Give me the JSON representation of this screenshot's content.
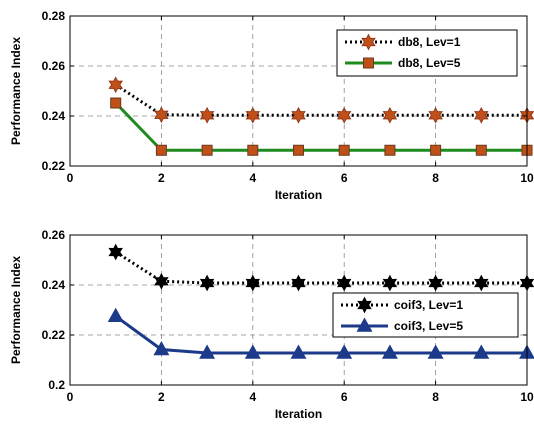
{
  "chart_data": [
    {
      "type": "line",
      "xlabel": "Iteration",
      "ylabel": "Performance Index",
      "xlim": [
        0,
        10
      ],
      "ylim": [
        0.22,
        0.28
      ],
      "xticks": [
        0,
        2,
        4,
        6,
        8,
        10
      ],
      "yticks": [
        0.22,
        0.24,
        0.26,
        0.28
      ],
      "ytick_labels": [
        "0.22",
        "0.24",
        "0.26",
        "0.28"
      ],
      "grid": true,
      "legend_position": "top-right",
      "series": [
        {
          "name": "db8, Lev=1",
          "x": [
            1,
            2,
            3,
            4,
            5,
            6,
            7,
            8,
            9,
            10
          ],
          "values": [
            0.2525,
            0.2405,
            0.2403,
            0.2403,
            0.2403,
            0.2403,
            0.2403,
            0.2403,
            0.2403,
            0.2403
          ],
          "line_color": "#000000",
          "line_style": "dotted",
          "marker": "hexagram",
          "marker_color": "#c0501a",
          "marker_edge": "#8b2f10"
        },
        {
          "name": "db8, Lev=5",
          "x": [
            1,
            2,
            3,
            4,
            5,
            6,
            7,
            8,
            9,
            10
          ],
          "values": [
            0.2452,
            0.2263,
            0.2263,
            0.2263,
            0.2263,
            0.2263,
            0.2263,
            0.2263,
            0.2263,
            0.2263
          ],
          "line_color": "#1f8a1f",
          "line_style": "solid",
          "marker": "square",
          "marker_color": "#c0501a",
          "marker_edge": "#6b3a1a"
        }
      ]
    },
    {
      "type": "line",
      "xlabel": "Iteration",
      "ylabel": "Performance Index",
      "xlim": [
        0,
        10
      ],
      "ylim": [
        0.2,
        0.26
      ],
      "xticks": [
        0,
        2,
        4,
        6,
        8,
        10
      ],
      "yticks": [
        0.2,
        0.22,
        0.24,
        0.26
      ],
      "ytick_labels": [
        "0.2",
        "0.22",
        "0.24",
        "0.26"
      ],
      "grid": true,
      "legend_position": "right",
      "series": [
        {
          "name": "coif3, Lev=1",
          "x": [
            1,
            2,
            3,
            4,
            5,
            6,
            7,
            8,
            9,
            10
          ],
          "values": [
            0.2532,
            0.2415,
            0.2408,
            0.2408,
            0.2408,
            0.2408,
            0.2408,
            0.2408,
            0.2408,
            0.2408
          ],
          "line_color": "#000000",
          "line_style": "dotted",
          "marker": "hexagram",
          "marker_color": "#000000",
          "marker_edge": "#000000"
        },
        {
          "name": "coif3, Lev=5",
          "x": [
            1,
            2,
            3,
            4,
            5,
            6,
            7,
            8,
            9,
            10
          ],
          "values": [
            0.2275,
            0.2142,
            0.2128,
            0.2128,
            0.2128,
            0.2128,
            0.2128,
            0.2128,
            0.2128,
            0.2128
          ],
          "line_color": "#1c3a8a",
          "line_style": "solid",
          "marker": "triangle",
          "marker_color": "#1c3a8a",
          "marker_edge": "#1c3a8a"
        }
      ]
    }
  ]
}
